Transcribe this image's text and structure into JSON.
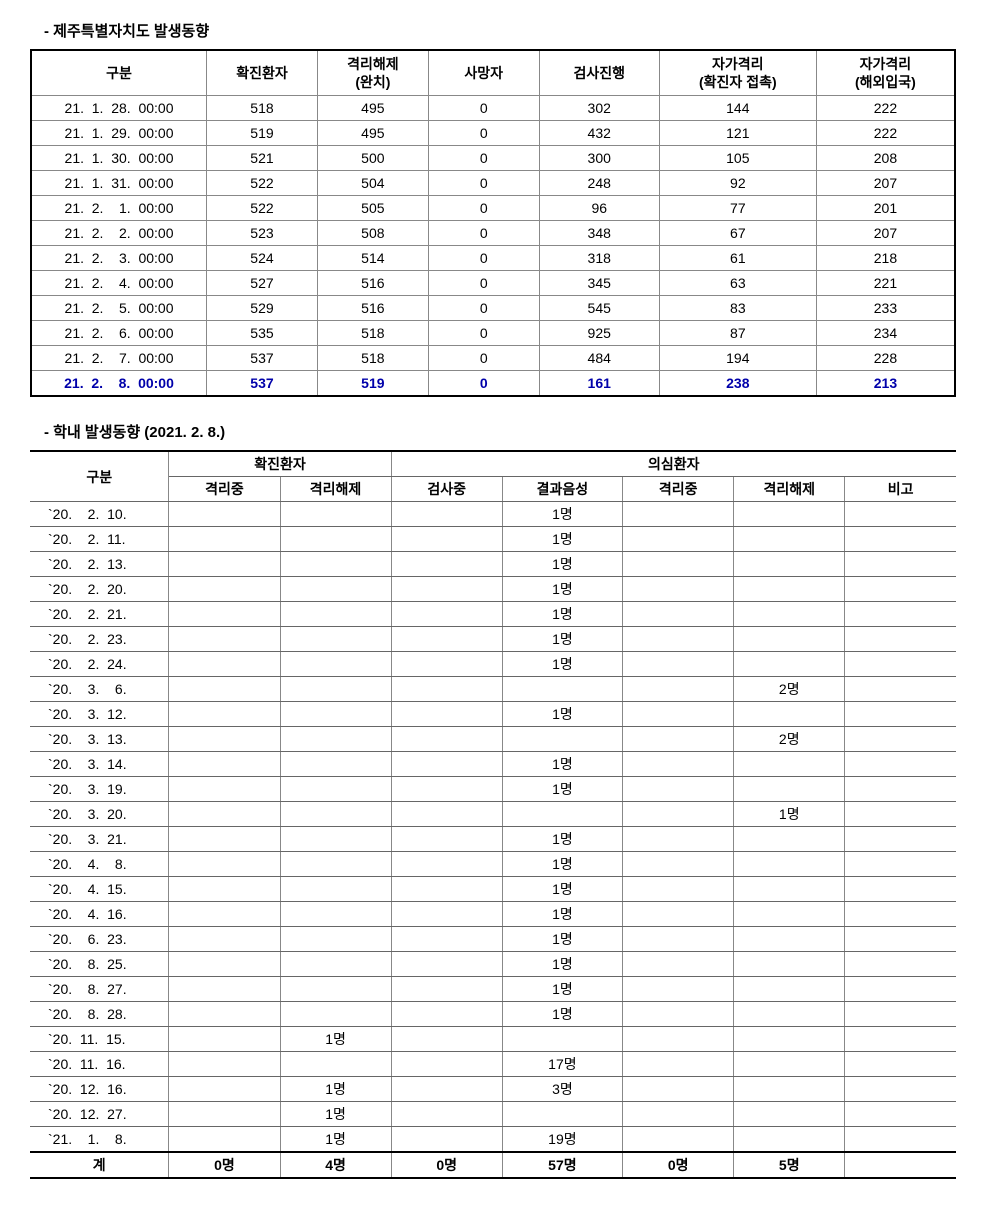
{
  "section1": {
    "title": "- 제주특별자치도 발생동향",
    "headers": [
      "구분",
      "확진환자",
      "격리해제\n(완치)",
      "사망자",
      "검사진행",
      "자가격리\n(확진자 접촉)",
      "자가격리\n(해외입국)"
    ],
    "rows": [
      [
        "21.  1.  28.  00:00",
        "518",
        "495",
        "0",
        "302",
        "144",
        "222"
      ],
      [
        "21.  1.  29.  00:00",
        "519",
        "495",
        "0",
        "432",
        "121",
        "222"
      ],
      [
        "21.  1.  30.  00:00",
        "521",
        "500",
        "0",
        "300",
        "105",
        "208"
      ],
      [
        "21.  1.  31.  00:00",
        "522",
        "504",
        "0",
        "248",
        "92",
        "207"
      ],
      [
        "21.  2.    1.  00:00",
        "522",
        "505",
        "0",
        "96",
        "77",
        "201"
      ],
      [
        "21.  2.    2.  00:00",
        "523",
        "508",
        "0",
        "348",
        "67",
        "207"
      ],
      [
        "21.  2.    3.  00:00",
        "524",
        "514",
        "0",
        "318",
        "61",
        "218"
      ],
      [
        "21.  2.    4.  00:00",
        "527",
        "516",
        "0",
        "345",
        "63",
        "221"
      ],
      [
        "21.  2.    5.  00:00",
        "529",
        "516",
        "0",
        "545",
        "83",
        "233"
      ],
      [
        "21.  2.    6.  00:00",
        "535",
        "518",
        "0",
        "925",
        "87",
        "234"
      ],
      [
        "21.  2.    7.  00:00",
        "537",
        "518",
        "0",
        "484",
        "194",
        "228"
      ],
      [
        "21.  2.    8.  00:00",
        "537",
        "519",
        "0",
        "161",
        "238",
        "213"
      ]
    ],
    "col_widths": [
      "19%",
      "12%",
      "12%",
      "12%",
      "13%",
      "17%",
      "15%"
    ]
  },
  "section2": {
    "title": "- 학내 발생동향 (2021. 2. 8.)",
    "header_row1": {
      "gubun": "구분",
      "confirmed": "확진환자",
      "suspected": "의심환자"
    },
    "header_row2": [
      "격리중",
      "격리해제",
      "검사중",
      "결과음성",
      "격리중",
      "격리해제",
      "비고"
    ],
    "rows": [
      [
        "`20.    2.  10.",
        "",
        "",
        "",
        "1명",
        "",
        "",
        ""
      ],
      [
        "`20.    2.  11.",
        "",
        "",
        "",
        "1명",
        "",
        "",
        ""
      ],
      [
        "`20.    2.  13.",
        "",
        "",
        "",
        "1명",
        "",
        "",
        ""
      ],
      [
        "`20.    2.  20.",
        "",
        "",
        "",
        "1명",
        "",
        "",
        ""
      ],
      [
        "`20.    2.  21.",
        "",
        "",
        "",
        "1명",
        "",
        "",
        ""
      ],
      [
        "`20.    2.  23.",
        "",
        "",
        "",
        "1명",
        "",
        "",
        ""
      ],
      [
        "`20.    2.  24.",
        "",
        "",
        "",
        "1명",
        "",
        "",
        ""
      ],
      [
        "`20.    3.    6.",
        "",
        "",
        "",
        "",
        "",
        "2명",
        ""
      ],
      [
        "`20.    3.  12.",
        "",
        "",
        "",
        "1명",
        "",
        "",
        ""
      ],
      [
        "`20.    3.  13.",
        "",
        "",
        "",
        "",
        "",
        "2명",
        ""
      ],
      [
        "`20.    3.  14.",
        "",
        "",
        "",
        "1명",
        "",
        "",
        ""
      ],
      [
        "`20.    3.  19.",
        "",
        "",
        "",
        "1명",
        "",
        "",
        ""
      ],
      [
        "`20.    3.  20.",
        "",
        "",
        "",
        "",
        "",
        "1명",
        ""
      ],
      [
        "`20.    3.  21.",
        "",
        "",
        "",
        "1명",
        "",
        "",
        ""
      ],
      [
        "`20.    4.    8.",
        "",
        "",
        "",
        "1명",
        "",
        "",
        ""
      ],
      [
        "`20.    4.  15.",
        "",
        "",
        "",
        "1명",
        "",
        "",
        ""
      ],
      [
        "`20.    4.  16.",
        "",
        "",
        "",
        "1명",
        "",
        "",
        ""
      ],
      [
        "`20.    6.  23.",
        "",
        "",
        "",
        "1명",
        "",
        "",
        ""
      ],
      [
        "`20.    8.  25.",
        "",
        "",
        "",
        "1명",
        "",
        "",
        ""
      ],
      [
        "`20.    8.  27.",
        "",
        "",
        "",
        "1명",
        "",
        "",
        ""
      ],
      [
        "`20.    8.  28.",
        "",
        "",
        "",
        "1명",
        "",
        "",
        ""
      ],
      [
        "`20.  11.  15.",
        "",
        "1명",
        "",
        "",
        "",
        "",
        ""
      ],
      [
        "`20.  11.  16.",
        "",
        "",
        "",
        "17명",
        "",
        "",
        ""
      ],
      [
        "`20.  12.  16.",
        "",
        "1명",
        "",
        "3명",
        "",
        "",
        ""
      ],
      [
        "`20.  12.  27.",
        "",
        "1명",
        "",
        "",
        "",
        "",
        ""
      ],
      [
        "`21.    1.    8.",
        "",
        "1명",
        "",
        "19명",
        "",
        "",
        ""
      ]
    ],
    "total_label": "계",
    "total_row": [
      "0명",
      "4명",
      "0명",
      "57명",
      "0명",
      "5명",
      ""
    ],
    "col_widths": [
      "15%",
      "12%",
      "12%",
      "12%",
      "13%",
      "12%",
      "12%",
      "12%"
    ]
  },
  "colors": {
    "highlight_text": "#0000aa",
    "border": "#888888",
    "border_heavy": "#000000",
    "background": "#ffffff"
  },
  "typography": {
    "base_font_size": 14,
    "title_font_size": 15,
    "font_family": "Malgun Gothic"
  }
}
